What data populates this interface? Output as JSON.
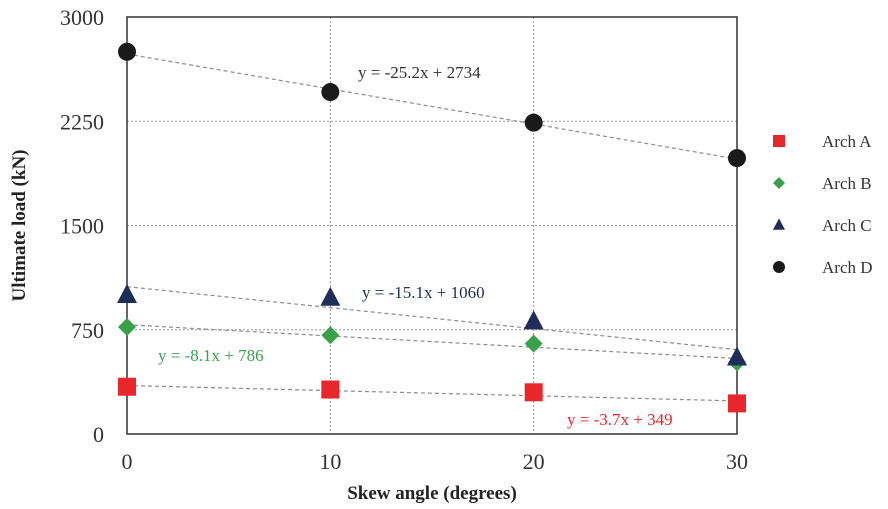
{
  "chart_data": {
    "type": "scatter",
    "title": "",
    "xlabel": "Skew angle (degrees)",
    "ylabel": "Ultimate load (kN)",
    "xlim": [
      0,
      30
    ],
    "ylim": [
      0,
      3000
    ],
    "xticks": [
      "0",
      "10",
      "20",
      "30"
    ],
    "yticks": [
      "0",
      "750",
      "1500",
      "2250",
      "3000"
    ],
    "grid": true,
    "legend_position": "right",
    "series": [
      {
        "name": "Arch A",
        "marker": "square",
        "color": "#e8262b",
        "x": [
          0,
          10,
          20,
          30
        ],
        "y": [
          340,
          320,
          300,
          220
        ],
        "trendline": {
          "equation": "y = -3.7x + 349",
          "slope": -3.7,
          "intercept": 349
        }
      },
      {
        "name": "Arch B",
        "marker": "diamond",
        "color": "#3aa14b",
        "x": [
          0,
          10,
          20,
          30
        ],
        "y": [
          770,
          710,
          650,
          515
        ],
        "trendline": {
          "equation": "y = -8.1x + 786",
          "slope": -8.1,
          "intercept": 786
        }
      },
      {
        "name": "Arch C",
        "marker": "triangle",
        "color": "#1f2d5a",
        "x": [
          0,
          10,
          20,
          30
        ],
        "y": [
          1000,
          980,
          810,
          550
        ],
        "trendline": {
          "equation": "y = -15.1x + 1060",
          "slope": -15.1,
          "intercept": 1060
        }
      },
      {
        "name": "Arch D",
        "marker": "circle",
        "color": "#1a1a1a",
        "x": [
          0,
          10,
          20,
          30
        ],
        "y": [
          2750,
          2460,
          2240,
          1985
        ],
        "trendline": {
          "equation": "y = -25.2x + 2734",
          "slope": -25.2,
          "intercept": 2734
        }
      }
    ]
  }
}
